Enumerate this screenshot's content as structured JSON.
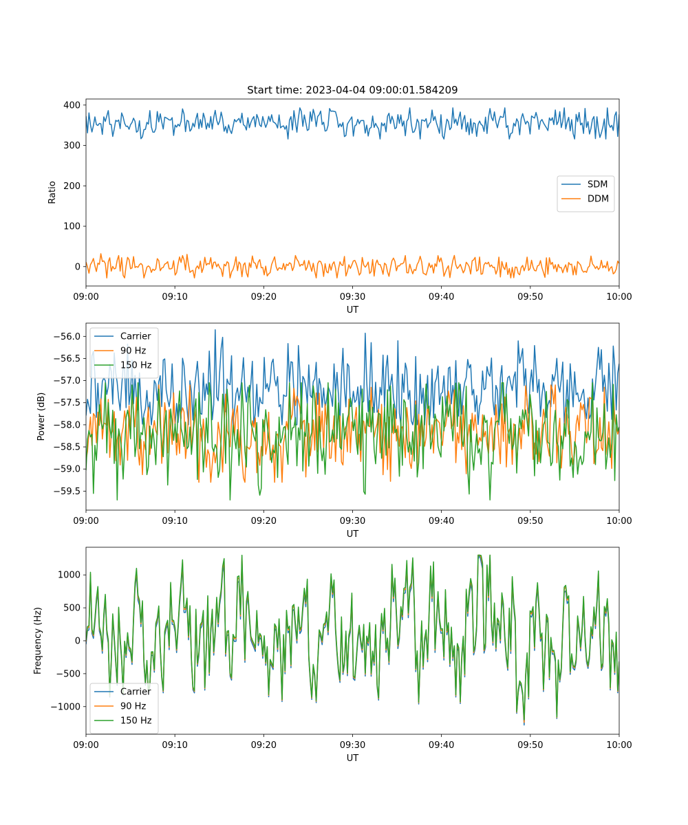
{
  "figure": {
    "title": "Start time: 2023-04-04 09:00:01.584209"
  },
  "chart_data": [
    {
      "type": "line",
      "title": "Start time: 2023-04-04 09:00:01.584209",
      "xlabel": "UT",
      "ylabel": "Ratio",
      "xlim": [
        "09:00",
        "10:00"
      ],
      "ylim": [
        -48,
        415
      ],
      "grid": false,
      "legend_position": "center-right",
      "xticks": [
        "09:00",
        "09:10",
        "09:20",
        "09:30",
        "09:40",
        "09:50",
        "10:00"
      ],
      "yticks": [
        0,
        100,
        200,
        300,
        400
      ],
      "x_samples": "360 evenly spaced samples from 09:00 to 10:00",
      "series": [
        {
          "name": "SDM",
          "color": "#1f77b4",
          "mean": 357,
          "range": [
            316,
            393
          ]
        },
        {
          "name": "DDM",
          "color": "#ff7f0e",
          "mean": 0,
          "range": [
            -28,
            32
          ]
        }
      ]
    },
    {
      "type": "line",
      "title": "",
      "xlabel": "UT",
      "ylabel": "Power (dB)",
      "xlim": [
        "09:00",
        "10:00"
      ],
      "ylim": [
        -59.93,
        -55.7
      ],
      "grid": false,
      "legend_position": "upper-left",
      "xticks": [
        "09:00",
        "09:10",
        "09:20",
        "09:30",
        "09:40",
        "09:50",
        "10:00"
      ],
      "yticks": [
        -56.0,
        -56.5,
        -57.0,
        -57.5,
        -58.0,
        -58.5,
        -59.0,
        -59.5
      ],
      "x_samples": "360 evenly spaced samples from 09:00 to 10:00",
      "series": [
        {
          "name": "Carrier",
          "color": "#1f77b4",
          "mean": -57.2,
          "range": [
            -58.0,
            -55.85
          ]
        },
        {
          "name": "90 Hz",
          "color": "#ff7f0e",
          "mean": -58.15,
          "range": [
            -59.3,
            -57.1
          ]
        },
        {
          "name": "150 Hz",
          "color": "#2ca02c",
          "mean": -58.2,
          "range": [
            -59.7,
            -57.05
          ]
        }
      ]
    },
    {
      "type": "line",
      "title": "",
      "xlabel": "UT",
      "ylabel": "Frequency (Hz)",
      "xlim": [
        "09:00",
        "10:00"
      ],
      "ylim": [
        -1420,
        1420
      ],
      "grid": false,
      "legend_position": "lower-left",
      "xticks": [
        "09:00",
        "09:10",
        "09:20",
        "09:30",
        "09:40",
        "09:50",
        "10:00"
      ],
      "yticks": [
        -1000,
        -500,
        0,
        500,
        1000
      ],
      "x_samples": "360 evenly spaced samples from 09:00 to 10:00",
      "series": [
        {
          "name": "Carrier",
          "color": "#1f77b4",
          "mean": 50,
          "range": [
            -1280,
            1300
          ]
        },
        {
          "name": "90 Hz",
          "color": "#ff7f0e",
          "mean": 90,
          "range": [
            -1240,
            1300
          ]
        },
        {
          "name": "150 Hz",
          "color": "#2ca02c",
          "mean": 110,
          "range": [
            -1200,
            1300
          ]
        }
      ]
    }
  ]
}
